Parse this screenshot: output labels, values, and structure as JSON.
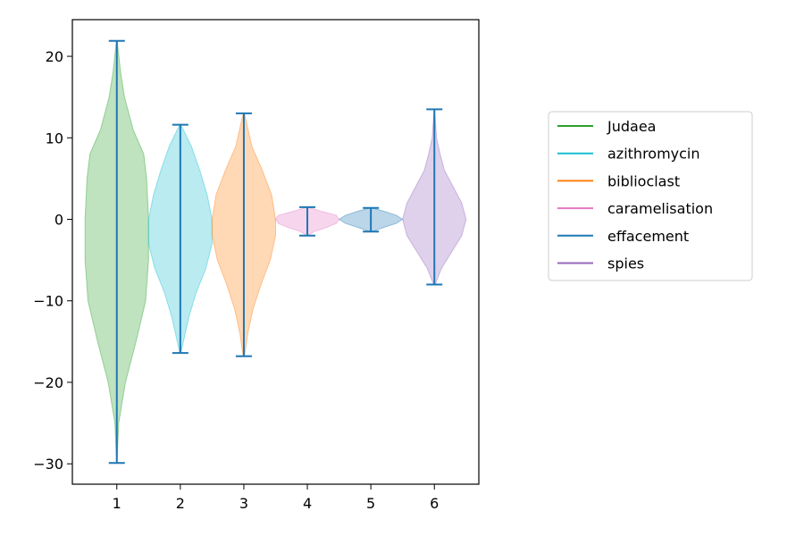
{
  "chart_data": {
    "type": "violin",
    "title": "",
    "xlabel": "",
    "ylabel": "",
    "xlim": [
      0.3,
      6.7
    ],
    "ylim": [
      -32.5,
      24.5
    ],
    "x_ticks": [
      1,
      2,
      3,
      4,
      5,
      6
    ],
    "y_ticks": [
      -30,
      -20,
      -10,
      0,
      10,
      20
    ],
    "grid": false,
    "legend": {
      "placement": "center-right outside"
    },
    "bar_color": "#1f77b4",
    "series": [
      {
        "name": "Judaea",
        "position": 1,
        "color": "#2ca02c",
        "min": -29.9,
        "max": 21.9,
        "density": [
          [
            -29.9,
            0.002
          ],
          [
            -25,
            0.02
          ],
          [
            -20,
            0.09
          ],
          [
            -15,
            0.2
          ],
          [
            -10,
            0.3
          ],
          [
            -5,
            0.33
          ],
          [
            0,
            0.33
          ],
          [
            5,
            0.31
          ],
          [
            8,
            0.28
          ],
          [
            11,
            0.17
          ],
          [
            15,
            0.08
          ],
          [
            18,
            0.04
          ],
          [
            21.9,
            0.004
          ]
        ]
      },
      {
        "name": "azithromycin",
        "position": 2,
        "color": "#17becf",
        "min": -16.4,
        "max": 11.6,
        "density": [
          [
            -16.4,
            0.005
          ],
          [
            -14,
            0.04
          ],
          [
            -12,
            0.07
          ],
          [
            -9,
            0.13
          ],
          [
            -6,
            0.21
          ],
          [
            -3,
            0.26
          ],
          [
            0,
            0.26
          ],
          [
            3,
            0.22
          ],
          [
            6,
            0.16
          ],
          [
            9,
            0.09
          ],
          [
            11.6,
            0.005
          ]
        ]
      },
      {
        "name": "biblioclast",
        "position": 3,
        "color": "#ff7f0e",
        "min": -16.8,
        "max": 13.0,
        "density": [
          [
            -16.8,
            0.005
          ],
          [
            -14,
            0.03
          ],
          [
            -11,
            0.07
          ],
          [
            -8,
            0.13
          ],
          [
            -5,
            0.2
          ],
          [
            -2,
            0.24
          ],
          [
            0,
            0.24
          ],
          [
            3,
            0.21
          ],
          [
            6,
            0.14
          ],
          [
            9,
            0.06
          ],
          [
            13,
            0.005
          ]
        ]
      },
      {
        "name": "caramelisation",
        "position": 4,
        "color": "#e377c2",
        "min": -2.0,
        "max": 1.5,
        "density": [
          [
            -2.0,
            0.005
          ],
          [
            -1.5,
            0.07
          ],
          [
            -1.0,
            0.2
          ],
          [
            -0.5,
            0.3
          ],
          [
            0,
            0.33
          ],
          [
            0.5,
            0.3
          ],
          [
            1.0,
            0.14
          ],
          [
            1.5,
            0.005
          ]
        ]
      },
      {
        "name": "effacement",
        "position": 5,
        "color": "#1f77b4",
        "min": -1.5,
        "max": 1.4,
        "density": [
          [
            -1.5,
            0.01
          ],
          [
            -1.0,
            0.1
          ],
          [
            -0.5,
            0.2
          ],
          [
            0,
            0.25
          ],
          [
            0.5,
            0.2
          ],
          [
            1.0,
            0.1
          ],
          [
            1.4,
            0.01
          ]
        ]
      },
      {
        "name": "spies",
        "position": 6,
        "color": "#9467bd",
        "min": -8.0,
        "max": 13.5,
        "density": [
          [
            -8,
            0.005
          ],
          [
            -6,
            0.05
          ],
          [
            -4,
            0.12
          ],
          [
            -2,
            0.19
          ],
          [
            0,
            0.22
          ],
          [
            2,
            0.19
          ],
          [
            4,
            0.13
          ],
          [
            6,
            0.07
          ],
          [
            8,
            0.04
          ],
          [
            10,
            0.015
          ],
          [
            13.5,
            0.002
          ]
        ]
      }
    ]
  }
}
